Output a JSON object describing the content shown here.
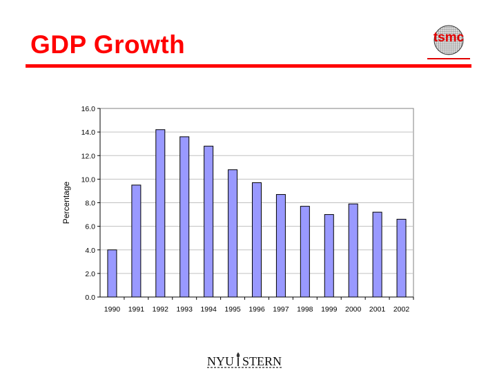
{
  "slide": {
    "title": "GDP Growth"
  },
  "logo": {
    "text": "tsmc",
    "icon": "wafer-grid-icon",
    "color": "#e00000"
  },
  "footer": {
    "text_left": "NYU",
    "text_right": "STERN",
    "icon": "torch-icon"
  },
  "colors": {
    "title": "#ff0000",
    "bar_fill": "#9999ff",
    "bar_stroke": "#000000",
    "gridline": "#c0c0c0"
  },
  "chart_data": {
    "type": "bar",
    "title": "",
    "xlabel": "",
    "ylabel": "Percentage",
    "categories": [
      "1990",
      "1991",
      "1992",
      "1993",
      "1994",
      "1995",
      "1996",
      "1997",
      "1998",
      "1999",
      "2000",
      "2001",
      "2002"
    ],
    "values": [
      4.0,
      9.5,
      14.2,
      13.6,
      12.8,
      10.8,
      9.7,
      8.7,
      7.7,
      7.0,
      7.9,
      7.2,
      6.6
    ],
    "ylim": [
      0,
      16
    ],
    "yticks": [
      0,
      2,
      4,
      6,
      8,
      10,
      12,
      14,
      16
    ],
    "ytick_labels": [
      "0.0",
      "2.0",
      "4.0",
      "6.0",
      "8.0",
      "10.0",
      "12.0",
      "14.0",
      "16.0"
    ],
    "grid": true,
    "legend": "none"
  }
}
